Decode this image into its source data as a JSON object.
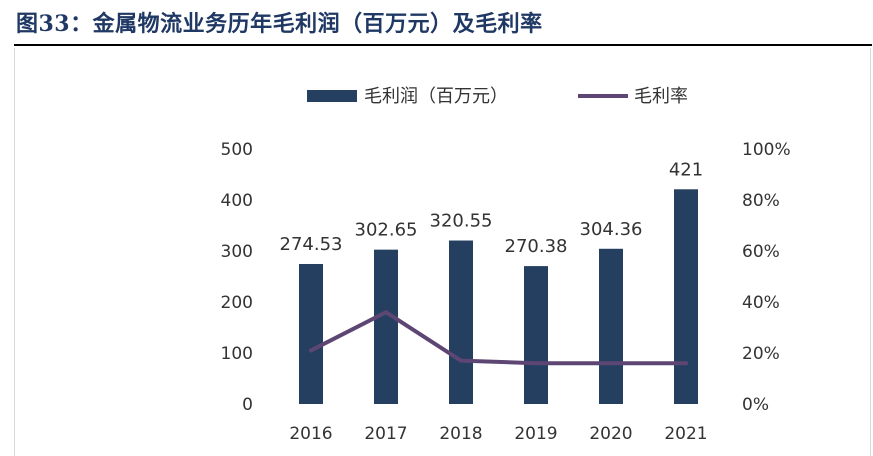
{
  "figure": {
    "title": "图33：金属物流业务历年毛利润（百万元）及毛利率"
  },
  "colors": {
    "bar": "#243f60",
    "line": "#5d4673",
    "text": "#333333",
    "title": "#1f3864"
  },
  "chart_data": {
    "type": "bar",
    "categories": [
      "2016",
      "2017",
      "2018",
      "2019",
      "2020",
      "2021"
    ],
    "series": [
      {
        "name": "毛利润（百万元）",
        "type": "bar",
        "axis": "left",
        "values": [
          274.53,
          302.65,
          320.55,
          270.38,
          304.36,
          421
        ],
        "labels": [
          "274.53",
          "302.65",
          "320.55",
          "270.38",
          "304.36",
          "421"
        ]
      },
      {
        "name": "毛利率",
        "type": "line",
        "axis": "right",
        "values": [
          21,
          36,
          17,
          16,
          16,
          16
        ]
      }
    ],
    "y_left": {
      "min": 0,
      "max": 500,
      "ticks": [
        "0",
        "100",
        "200",
        "300",
        "400",
        "500"
      ]
    },
    "y_right": {
      "min": 0,
      "max": 100,
      "ticks": [
        "0%",
        "20%",
        "40%",
        "60%",
        "80%",
        "100%"
      ]
    },
    "legend_position": "top-center",
    "grid": false
  }
}
